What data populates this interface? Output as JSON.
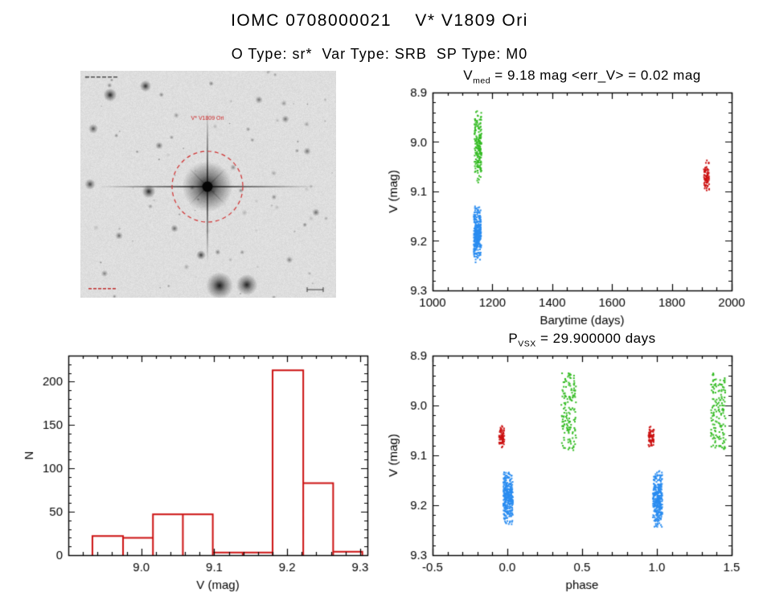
{
  "page": {
    "title": "IOMC 0708000021    V* V1809 Ori",
    "subtitle": "O Type: sr*  Var Type: SRB  SP Type: M0"
  },
  "star_image": {
    "annotation": "V* V1809 Ori",
    "annotation_color": "#cc2222",
    "aperture_circle_color": "#d03030"
  },
  "chart_data": [
    {
      "id": "lightcurve",
      "type": "scatter",
      "title_base": "V",
      "title_sub": "med",
      "title_rest": " = 9.18 mag <err_V> = 0.02 mag",
      "xlabel": "Barytime (days)",
      "ylabel": "V (mag)",
      "xlim": [
        1000,
        2000
      ],
      "ylim_top_to_bottom": [
        8.9,
        9.3
      ],
      "xticks": [
        "1000",
        "1200",
        "1400",
        "1600",
        "1800",
        "2000"
      ],
      "yticks": [
        "8.9",
        "9.0",
        "9.1",
        "9.2",
        "9.3"
      ],
      "xminor": 3,
      "yminor": 4,
      "clusters": [
        {
          "series": "epoch1-green",
          "color": "#33bb22",
          "x_center": 1152,
          "x_spread": 12,
          "y_min": 8.935,
          "y_max": 9.088,
          "count": 180,
          "y_dist": "tri"
        },
        {
          "series": "epoch1-blue",
          "color": "#2a8cf0",
          "x_center": 1150,
          "x_spread": 12,
          "y_min": 9.128,
          "y_max": 9.245,
          "count": 320,
          "y_dist": "tri"
        },
        {
          "series": "epoch2-red",
          "color": "#cc1111",
          "x_center": 1916,
          "x_spread": 9,
          "y_min": 9.035,
          "y_max": 9.102,
          "count": 75,
          "y_dist": "tri"
        }
      ]
    },
    {
      "id": "histogram",
      "type": "bar",
      "xlabel": "V (mag)",
      "ylabel": "N",
      "xlim": [
        8.9,
        9.31
      ],
      "ylim_top_to_bottom": [
        230,
        0
      ],
      "xticks": [
        "9.0",
        "9.1",
        "9.2",
        "9.3"
      ],
      "yticks": [
        "0",
        "50",
        "100",
        "150",
        "200"
      ],
      "xminor": 4,
      "yminor": 4,
      "color": "#cc1111",
      "bin_edges": [
        8.933,
        8.975,
        9.016,
        9.057,
        9.098,
        9.139,
        9.18,
        9.222,
        9.263,
        9.303
      ],
      "counts": [
        22,
        20,
        47,
        47,
        3,
        3,
        213,
        83,
        4
      ]
    },
    {
      "id": "phase",
      "type": "scatter",
      "title_base": "P",
      "title_sub": "VSX",
      "title_rest": " = 29.900000 days",
      "xlabel": "phase",
      "ylabel": "V (mag)",
      "xlim": [
        -0.5,
        1.5
      ],
      "ylim_top_to_bottom": [
        8.9,
        9.3
      ],
      "xticks": [
        "-0.5",
        "0.0",
        "0.5",
        "1.0",
        "1.5"
      ],
      "yticks": [
        "8.9",
        "9.0",
        "9.1",
        "9.2",
        "9.3"
      ],
      "xminor": 4,
      "yminor": 4,
      "clusters": [
        {
          "series": "red-phase0",
          "color": "#cc1111",
          "x_center": -0.038,
          "x_spread": 0.018,
          "y_min": 9.038,
          "y_max": 9.088,
          "count": 65,
          "y_dist": "tri"
        },
        {
          "series": "blue-phase0",
          "color": "#2a8cf0",
          "x_center": 0.005,
          "x_spread": 0.032,
          "y_min": 9.128,
          "y_max": 9.245,
          "count": 320,
          "y_dist": "tri"
        },
        {
          "series": "green-phase04",
          "color": "#33bb22",
          "x_center": 0.41,
          "x_spread": 0.05,
          "y_min": 8.935,
          "y_max": 9.09,
          "count": 150,
          "y_dist": "uni"
        },
        {
          "series": "red-phase1",
          "color": "#cc1111",
          "x_center": 0.962,
          "x_spread": 0.018,
          "y_min": 9.038,
          "y_max": 9.088,
          "count": 65,
          "y_dist": "tri"
        },
        {
          "series": "blue-phase1",
          "color": "#2a8cf0",
          "x_center": 1.005,
          "x_spread": 0.032,
          "y_min": 9.128,
          "y_max": 9.245,
          "count": 320,
          "y_dist": "tri"
        },
        {
          "series": "green-phase14",
          "color": "#33bb22",
          "x_center": 1.41,
          "x_spread": 0.05,
          "y_min": 8.935,
          "y_max": 9.09,
          "count": 150,
          "y_dist": "uni"
        }
      ]
    }
  ]
}
